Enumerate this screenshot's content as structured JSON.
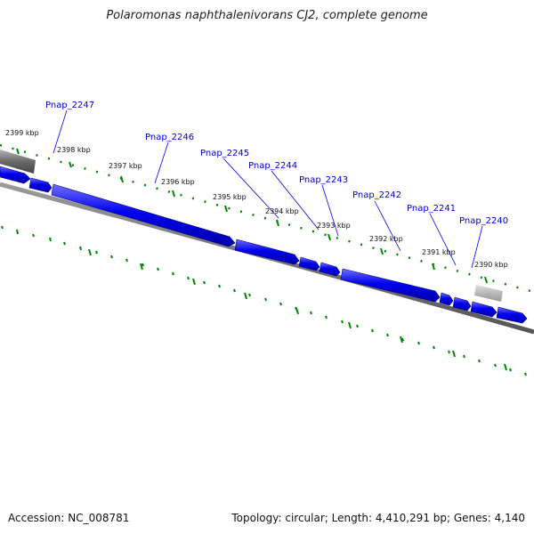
{
  "title": "Polaromonas naphthalenivorans CJ2, complete genome",
  "footer": {
    "accession": "Accession: NC_008781",
    "summary": "Topology: circular; Length: 4,410,291 bp; Genes: 4,140"
  },
  "colors": {
    "gene": "#0000ee",
    "gene_label": "#0000cc",
    "tick": "#008800",
    "backbone": "#666666",
    "rna_feature": "#999999"
  },
  "tick_labels": [
    "2399 kbp",
    "2398 kbp",
    "2397 kbp",
    "2396 kbp",
    "2395 kbp",
    "2394 kbp",
    "2393 kbp",
    "2392 kbp",
    "2391 kbp",
    "2390 kbp"
  ],
  "gene_labels": [
    "Pnap_2247",
    "Pnap_2246",
    "Pnap_2245",
    "Pnap_2244",
    "Pnap_2243",
    "Pnap_2242",
    "Pnap_2241",
    "Pnap_2240"
  ]
}
